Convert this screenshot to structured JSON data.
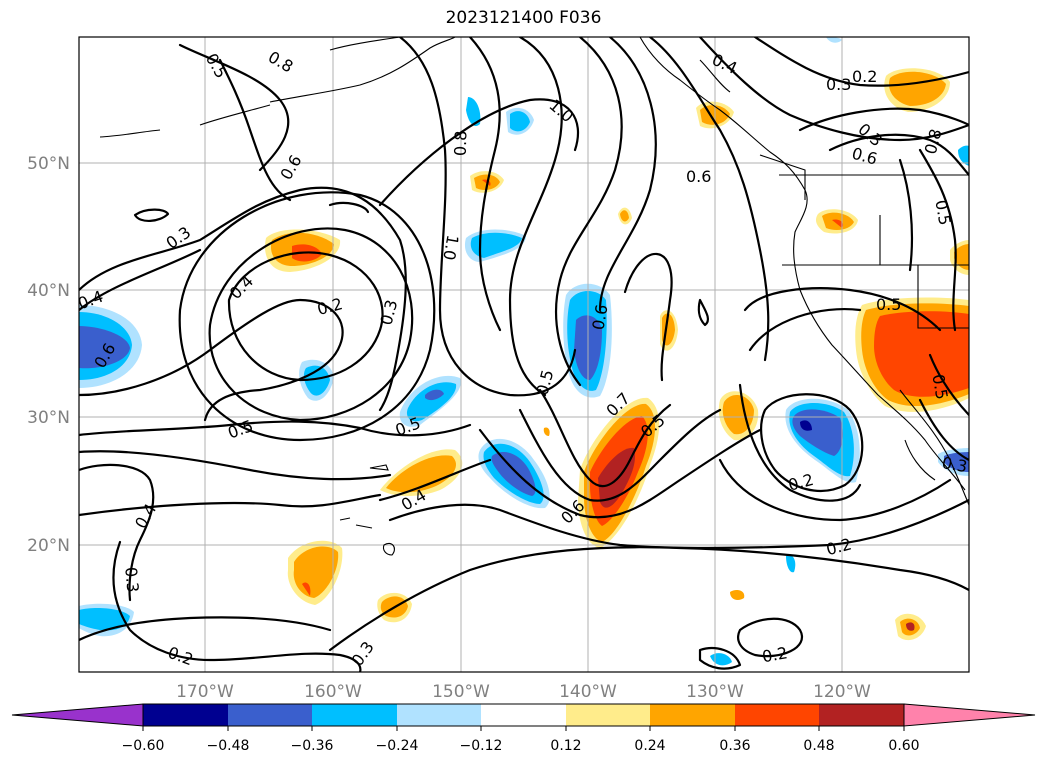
{
  "title": "2023121400 F036",
  "map": {
    "lat_labels": [
      "50°N",
      "40°N",
      "30°N",
      "20°N"
    ],
    "lon_labels": [
      "170°W",
      "160°W",
      "150°W",
      "140°W",
      "130°W",
      "120°W"
    ]
  },
  "colorbar": {
    "tick_labels": [
      "−0.60",
      "−0.48",
      "−0.36",
      "−0.24",
      "−0.12",
      "0.12",
      "0.24",
      "0.36",
      "0.48",
      "0.60"
    ],
    "colors": [
      "#9932cc",
      "#000090",
      "#3a5fcd",
      "#00bfff",
      "#b0e2ff",
      "#ffffff",
      "#ffec8b",
      "#ffa500",
      "#ff4500",
      "#b22222",
      "#ff82ab"
    ]
  },
  "contour_labels": [
    "0.8",
    "0.5",
    "0.6",
    "0.3",
    "0.4",
    "0.4",
    "0.6",
    "0.2",
    "0.3",
    "0.5",
    "0.5",
    "0.4",
    "0.4",
    "0.3",
    "0.2",
    "0.3",
    "0.8",
    "1.0",
    "1.0",
    "0.6",
    "0.5",
    "0.6",
    "0.7",
    "0.5",
    "0.4",
    "0.3",
    "0.6",
    "0.2",
    "0.3",
    "0.6",
    "0.8",
    "0.5",
    "0.5",
    "0.5",
    "0.2",
    "0.2",
    "0.2",
    "0.3"
  ]
}
